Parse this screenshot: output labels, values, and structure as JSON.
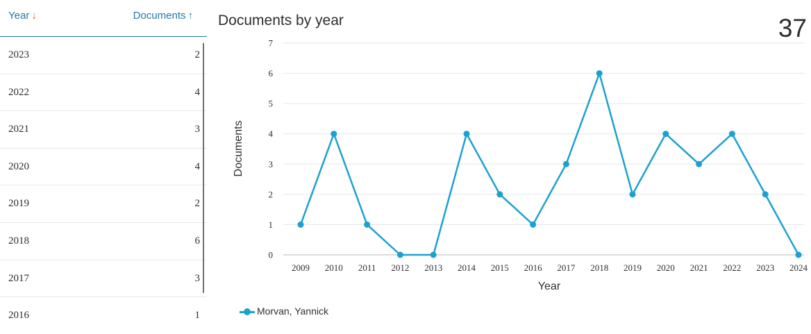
{
  "table": {
    "year_header": "Year",
    "docs_header": "Documents",
    "year_sort_arrow": "↓",
    "docs_sort_arrow": "↑",
    "rows": [
      {
        "year": "2023",
        "documents": "2"
      },
      {
        "year": "2022",
        "documents": "4"
      },
      {
        "year": "2021",
        "documents": "3"
      },
      {
        "year": "2020",
        "documents": "4"
      },
      {
        "year": "2019",
        "documents": "2"
      },
      {
        "year": "2018",
        "documents": "6"
      },
      {
        "year": "2017",
        "documents": "3"
      },
      {
        "year": "2016",
        "documents": "1"
      }
    ]
  },
  "total": "37",
  "colors": {
    "accent": "#1f7aa8",
    "sort_arrow": "#e2642a",
    "series": "#1ba1d0"
  },
  "chart_data": {
    "type": "line",
    "title": "Documents by year",
    "xlabel": "Year",
    "ylabel": "Documents",
    "x": [
      "2009",
      "2010",
      "2011",
      "2012",
      "2013",
      "2014",
      "2015",
      "2016",
      "2017",
      "2018",
      "2019",
      "2020",
      "2021",
      "2022",
      "2023",
      "2024"
    ],
    "series": [
      {
        "name": "Morvan, Yannick",
        "values": [
          1,
          4,
          1,
          0,
          0,
          4,
          2,
          1,
          3,
          6,
          2,
          4,
          3,
          4,
          2,
          0
        ]
      }
    ],
    "ylim": [
      0,
      7
    ],
    "yticks": [
      0,
      1,
      2,
      3,
      4,
      5,
      6,
      7
    ],
    "grid": true,
    "legend": "bottom-left"
  }
}
